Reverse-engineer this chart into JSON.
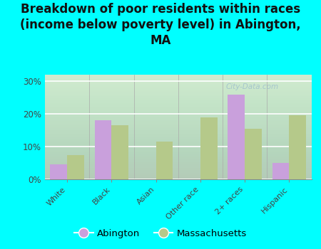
{
  "categories": [
    "White",
    "Black",
    "Asian",
    "Other race",
    "2+ races",
    "Hispanic"
  ],
  "abington": [
    4.5,
    18.0,
    0.0,
    0.0,
    26.0,
    5.0
  ],
  "massachusetts": [
    7.5,
    16.5,
    11.5,
    19.0,
    15.5,
    19.5
  ],
  "abington_color": "#c9a0dc",
  "massachusetts_color": "#b5c98a",
  "title": "Breakdown of poor residents within races\n(income below poverty level) in Abington,\nMA",
  "title_fontsize": 12,
  "yticks": [
    0,
    10,
    20,
    30
  ],
  "ytick_labels": [
    "0%",
    "10%",
    "20%",
    "30%"
  ],
  "ylim": [
    0,
    32
  ],
  "background_color": "#00ffff",
  "legend_labels": [
    "Abington",
    "Massachusetts"
  ],
  "bar_width": 0.38,
  "watermark": "City-Data.com"
}
